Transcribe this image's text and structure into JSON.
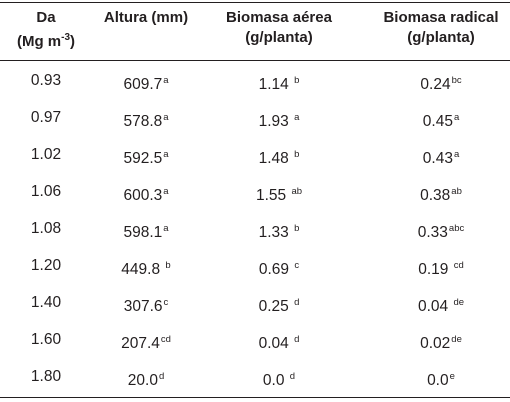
{
  "table": {
    "headers": [
      {
        "line1": "Da",
        "line2_base": "(Mg m",
        "line2_sup": "-3",
        "line2_end": ")"
      },
      {
        "line1": "Altura (mm)"
      },
      {
        "line1": "Biomasa aérea",
        "line2": "(g/planta)"
      },
      {
        "line1": "Biomasa radical",
        "line2": "(g/planta)"
      }
    ],
    "rows": [
      {
        "da": "0.93",
        "altura": "609.7",
        "altura_sup": "a",
        "aerea": "1.14 ",
        "aerea_sup": "b",
        "radical": "0.24",
        "radical_sup": "bc"
      },
      {
        "da": "0.97",
        "altura": "578.8",
        "altura_sup": "a",
        "aerea": "1.93 ",
        "aerea_sup": "a",
        "radical": "0.45",
        "radical_sup": "a"
      },
      {
        "da": "1.02",
        "altura": "592.5",
        "altura_sup": "a",
        "aerea": "1.48 ",
        "aerea_sup": "b",
        "radical": "0.43",
        "radical_sup": "a"
      },
      {
        "da": "1.06",
        "altura": "600.3",
        "altura_sup": "a",
        "aerea": "1.55 ",
        "aerea_sup": "ab",
        "radical": "0.38",
        "radical_sup": "ab"
      },
      {
        "da": "1.08",
        "altura": "598.1",
        "altura_sup": "a",
        "aerea": "1.33 ",
        "aerea_sup": "b",
        "radical": "0.33",
        "radical_sup": "abc"
      },
      {
        "da": "1.20",
        "altura": "449.8 ",
        "altura_sup": "b",
        "aerea": "0.69 ",
        "aerea_sup": "c",
        "radical": "0.19 ",
        "radical_sup": "cd"
      },
      {
        "da": "1.40",
        "altura": "307.6",
        "altura_sup": "c",
        "aerea": "0.25 ",
        "aerea_sup": "d",
        "radical": "0.04 ",
        "radical_sup": "de"
      },
      {
        "da": "1.60",
        "altura": "207.4",
        "altura_sup": "cd",
        "aerea": "0.04 ",
        "aerea_sup": "d",
        "radical": "0.02",
        "radical_sup": "de"
      },
      {
        "da": "1.80",
        "altura": "20.0",
        "altura_sup": "d",
        "aerea": "0.0 ",
        "aerea_sup": "d",
        "radical": "0.0",
        "radical_sup": "e"
      }
    ]
  }
}
